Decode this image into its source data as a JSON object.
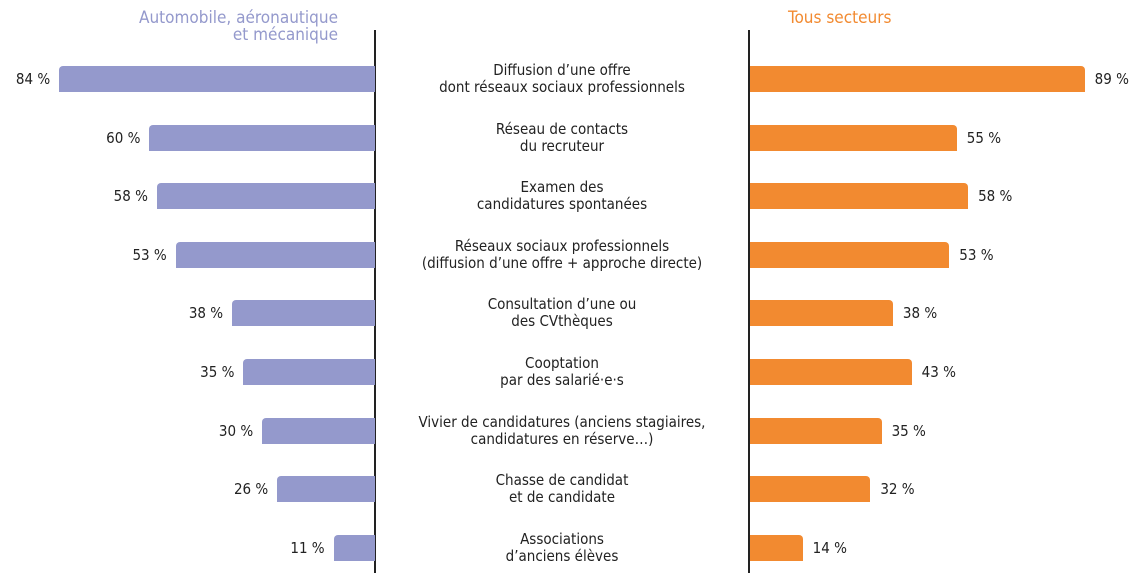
{
  "chart_data": {
    "type": "butterfly-bar",
    "categories": [
      "Diffusion d’une offre\ndont réseaux sociaux professionnels",
      "Réseau de contacts\ndu recruteur",
      "Examen des\ncandidatures spontanées",
      "Réseaux sociaux professionnels\n(diffusion d’une offre + approche directe)",
      "Consultation d’une ou\ndes CVthèques",
      "Cooptation\npar des salarié·e·s",
      "Vivier de candidatures (anciens stagiaires,\ncandidatures en réserve…)",
      "Chasse de candidat\net de candidate",
      "Associations\nd’anciens élèves"
    ],
    "series": [
      {
        "name": "Automobile, aéronautique\net mécanique",
        "color": "#9499cc",
        "values": [
          84,
          60,
          58,
          53,
          38,
          35,
          30,
          26,
          11
        ],
        "value_labels": [
          "84 %",
          "60 %",
          "58 %",
          "53 %",
          "38 %",
          "35 %",
          "30 %",
          "26 %",
          "11 %"
        ]
      },
      {
        "name": "Tous secteurs",
        "color": "#f28a30",
        "values": [
          89,
          55,
          58,
          53,
          38,
          43,
          35,
          32,
          14
        ],
        "value_labels": [
          "89 %",
          "55 %",
          "58 %",
          "53 %",
          "38 %",
          "43 %",
          "35 %",
          "32 %",
          "14 %"
        ]
      }
    ]
  }
}
